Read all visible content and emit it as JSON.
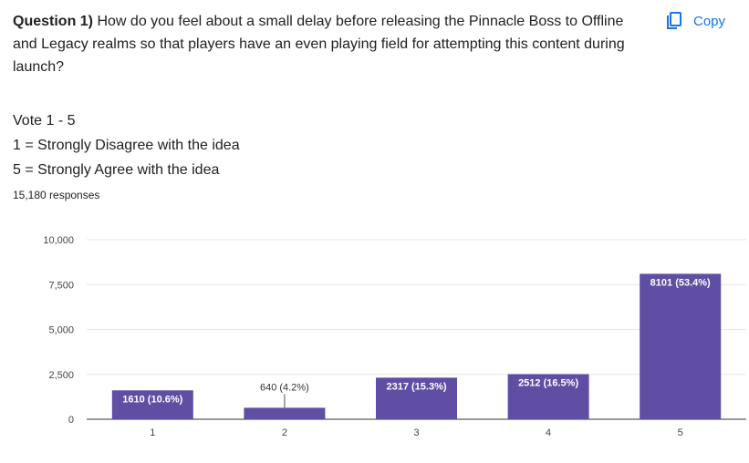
{
  "question": {
    "number": "Question 1)",
    "text": " How do you feel about a small delay before releasing the Pinnacle Boss to Offline and Legacy realms so that players have an even playing field for attempting this content during launch?"
  },
  "copy_label": "Copy",
  "description": {
    "line1": "Vote 1 - 5",
    "line2": "1 = Strongly Disagree with the idea",
    "line3": "5 = Strongly Agree with the idea"
  },
  "responses": "15,180 responses",
  "colors": {
    "bar": "#5f4ea3",
    "accent": "#1a73e8"
  },
  "chart_data": {
    "type": "bar",
    "categories": [
      "1",
      "2",
      "3",
      "4",
      "5"
    ],
    "values": [
      1610,
      640,
      2317,
      2512,
      8101
    ],
    "data_labels": [
      "1610 (10.6%)",
      "640 (4.2%)",
      "2317 (15.3%)",
      "2512 (16.5%)",
      "8101 (53.4%)"
    ],
    "y_ticks": [
      "0",
      "2,500",
      "5,000",
      "7,500",
      "10,000"
    ],
    "ylim": [
      0,
      10000
    ],
    "grid": true
  }
}
